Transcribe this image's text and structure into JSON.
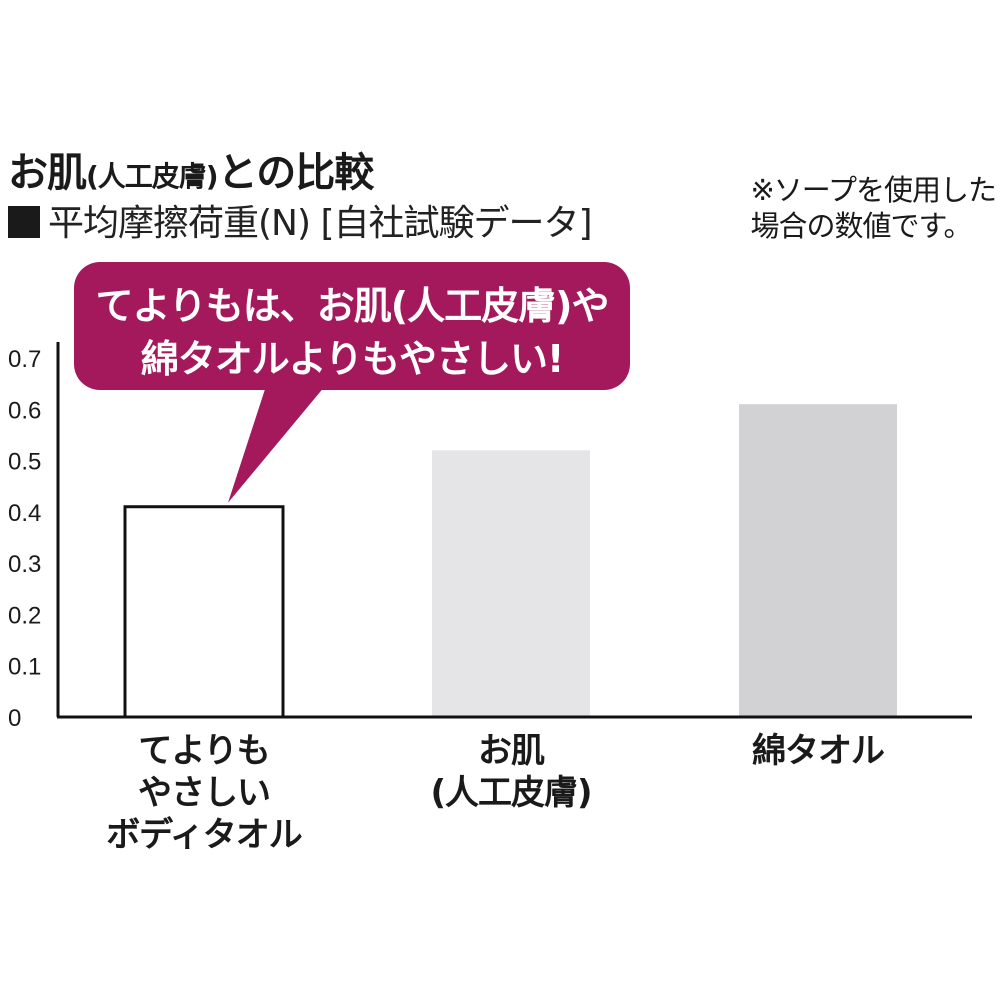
{
  "header": {
    "title_main_a": "お肌",
    "title_main_paren": "(人工皮膚)",
    "title_main_b": "との比較",
    "subtitle": "平均摩擦荷重(N) [自社試験データ]",
    "note": "※ソープを使用した\n場合の数値です。"
  },
  "callout": {
    "line1": "てよりもは、お肌(人工皮膚)や",
    "line2": "綿タオルよりもやさしい!"
  },
  "colors": {
    "accent": "#a3195b",
    "bar_tayori": "#ffffff",
    "bar_skin": "#e5e5e7",
    "bar_cotton": "#d2d2d4",
    "axis": "#111111"
  },
  "chart_data": {
    "type": "bar",
    "categories": [
      "てよりも\nやさしい\nボディタオル",
      "お肌\n(人工皮膚)",
      "綿タオル"
    ],
    "values": [
      0.41,
      0.52,
      0.61
    ],
    "ylim": [
      0,
      0.7
    ],
    "yticks": [
      0,
      0.1,
      0.2,
      0.3,
      0.4,
      0.5,
      0.6,
      0.7
    ],
    "ytick_labels": [
      "0",
      "0.1",
      "0.2",
      "0.3",
      "0.4",
      "0.5",
      "0.6",
      "0.7"
    ],
    "title": "",
    "xlabel": "",
    "ylabel": "",
    "grid": false,
    "legend": "none"
  }
}
